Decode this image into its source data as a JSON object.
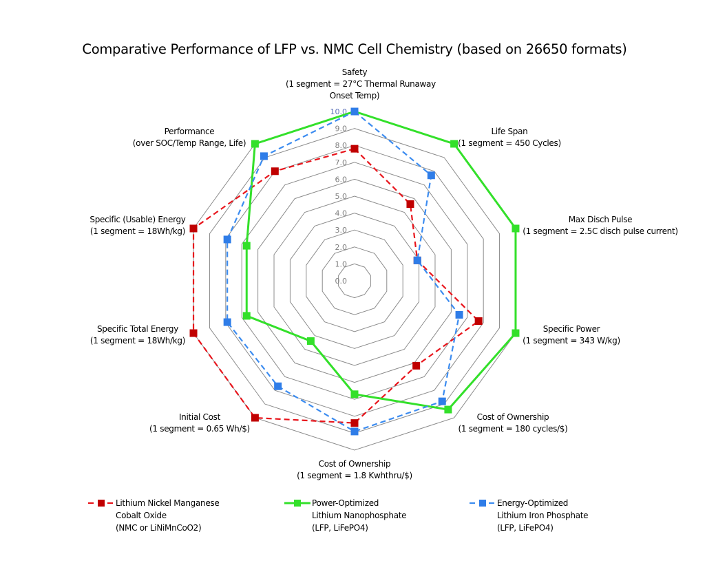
{
  "chart_data": {
    "type": "radar",
    "title": "Comparative Performance of LFP vs. NMC Cell Chemistry (based on 26650 formats)",
    "axes": [
      [
        "Safety",
        "(1 segment = 27°C Thermal Runaway",
        "Onset Temp)"
      ],
      [
        "Life Span",
        "(1 segment = 450 Cycles)"
      ],
      [
        "Max Disch Pulse",
        "(1 segment = 2.5C disch pulse current)"
      ],
      [
        "Specific Power",
        "(1 segment = 343 W/kg)"
      ],
      [
        "Cost of Ownership",
        "(1 segment = 180 cycles/$)"
      ],
      [
        "Cost of Ownership",
        "(1 segment = 1.8 Kwhthru/$)"
      ],
      [
        "Initial Cost",
        "(1 segment = 0.65 Wh/$)"
      ],
      [
        "Specific Total Energy",
        "(1 segment = 18Wh/kg)"
      ],
      [
        "Specific (Usable) Energy",
        "(1 segment = 18Wh/kg)"
      ],
      [
        "Performance",
        "(over SOC/Temp Range, Life)"
      ]
    ],
    "rlim": [
      0,
      10
    ],
    "tick_labels": [
      "0.0",
      "1.0",
      "2.0",
      "3.0",
      "4.0",
      "5.0",
      "6.0",
      "7.0",
      "8.0",
      "9.0",
      "10.0"
    ],
    "grid": true,
    "legend_position": "bottom",
    "series": [
      {
        "name": [
          "Lithium Nickel Manganese",
          "Cobalt Oxide",
          "(NMC or LiNiMnCoO2)"
        ],
        "color": "#e8141b",
        "marker_color": "#c00000",
        "dash": true,
        "values": [
          7.8,
          5.6,
          3.9,
          7.7,
          6.2,
          8.4,
          10,
          10,
          10,
          8.0
        ]
      },
      {
        "name": [
          "Power-Optimized",
          "Lithium Nanophosphate",
          "(LFP, LiFePO4)"
        ],
        "color": "#33e02a",
        "marker_color": "#33e02a",
        "dash": false,
        "values": [
          10,
          10,
          10,
          10,
          9.4,
          6.7,
          4.4,
          6.7,
          6.7,
          10
        ]
      },
      {
        "name": [
          "Energy-Optimized",
          "Lithium Iron Phosphate",
          "(LFP, LiFePO4)"
        ],
        "color": "#3c8cf0",
        "marker_color": "#2f7de8",
        "dash": true,
        "values": [
          10,
          7.7,
          3.9,
          6.5,
          8.8,
          8.9,
          7.7,
          7.9,
          7.9,
          9.1
        ]
      }
    ]
  }
}
